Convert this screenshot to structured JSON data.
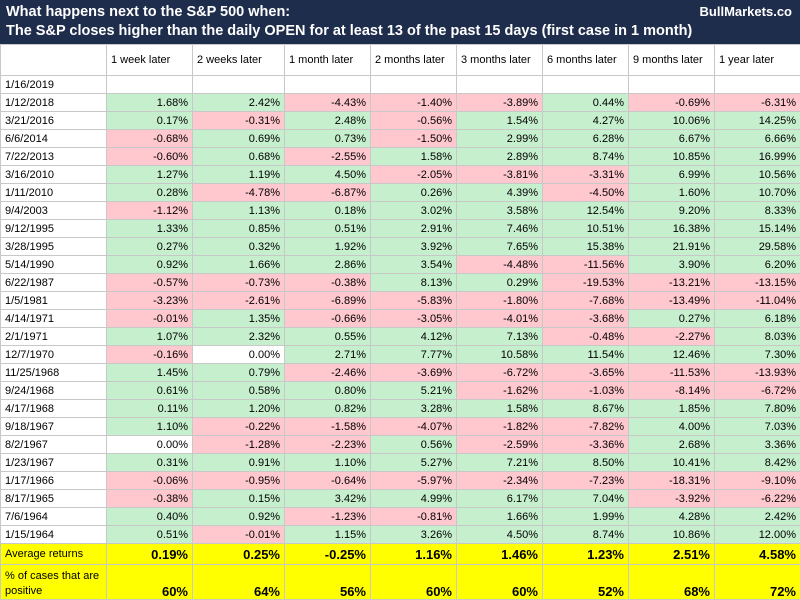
{
  "header": {
    "title_line1": "What happens next to the S&P 500 when:",
    "title_line2": "The S&P closes higher than the daily OPEN for at least 13 of the past 15 days (first case in 1 month)",
    "brand": "BullMarkets.co"
  },
  "colors": {
    "header_bg": "#1f2d4d",
    "positive_bg": "#c6efce",
    "negative_bg": "#ffc7ce",
    "summary_bg": "#ffff00"
  },
  "chart_data": {
    "type": "table",
    "columns": [
      "",
      "1 week later",
      "2 weeks later",
      "1 month later",
      "2 months later",
      "3 months later",
      "6 months later",
      "9 months later",
      "1 year later"
    ],
    "rows": [
      {
        "date": "1/16/2019",
        "values": [
          "",
          "",
          "",
          "",
          "",
          "",
          "",
          ""
        ]
      },
      {
        "date": "1/12/2018",
        "values": [
          "1.68%",
          "2.42%",
          "-4.43%",
          "-1.40%",
          "-3.89%",
          "0.44%",
          "-0.69%",
          "-6.31%"
        ]
      },
      {
        "date": "3/21/2016",
        "values": [
          "0.17%",
          "-0.31%",
          "2.48%",
          "-0.56%",
          "1.54%",
          "4.27%",
          "10.06%",
          "14.25%"
        ]
      },
      {
        "date": "6/6/2014",
        "values": [
          "-0.68%",
          "0.69%",
          "0.73%",
          "-1.50%",
          "2.99%",
          "6.28%",
          "6.67%",
          "6.66%"
        ]
      },
      {
        "date": "7/22/2013",
        "values": [
          "-0.60%",
          "0.68%",
          "-2.55%",
          "1.58%",
          "2.89%",
          "8.74%",
          "10.85%",
          "16.99%"
        ]
      },
      {
        "date": "3/16/2010",
        "values": [
          "1.27%",
          "1.19%",
          "4.50%",
          "-2.05%",
          "-3.81%",
          "-3.31%",
          "6.99%",
          "10.56%"
        ]
      },
      {
        "date": "1/11/2010",
        "values": [
          "0.28%",
          "-4.78%",
          "-6.87%",
          "0.26%",
          "4.39%",
          "-4.50%",
          "1.60%",
          "10.70%"
        ]
      },
      {
        "date": "9/4/2003",
        "values": [
          "-1.12%",
          "1.13%",
          "0.18%",
          "3.02%",
          "3.58%",
          "12.54%",
          "9.20%",
          "8.33%"
        ]
      },
      {
        "date": "9/12/1995",
        "values": [
          "1.33%",
          "0.85%",
          "0.51%",
          "2.91%",
          "7.46%",
          "10.51%",
          "16.38%",
          "15.14%"
        ]
      },
      {
        "date": "3/28/1995",
        "values": [
          "0.27%",
          "0.32%",
          "1.92%",
          "3.92%",
          "7.65%",
          "15.38%",
          "21.91%",
          "29.58%"
        ]
      },
      {
        "date": "5/14/1990",
        "values": [
          "0.92%",
          "1.66%",
          "2.86%",
          "3.54%",
          "-4.48%",
          "-11.56%",
          "3.90%",
          "6.20%"
        ]
      },
      {
        "date": "6/22/1987",
        "values": [
          "-0.57%",
          "-0.73%",
          "-0.38%",
          "8.13%",
          "0.29%",
          "-19.53%",
          "-13.21%",
          "-13.15%"
        ]
      },
      {
        "date": "1/5/1981",
        "values": [
          "-3.23%",
          "-2.61%",
          "-6.89%",
          "-5.83%",
          "-1.80%",
          "-7.68%",
          "-13.49%",
          "-11.04%"
        ]
      },
      {
        "date": "4/14/1971",
        "values": [
          "-0.01%",
          "1.35%",
          "-0.66%",
          "-3.05%",
          "-4.01%",
          "-3.68%",
          "0.27%",
          "6.18%"
        ]
      },
      {
        "date": "2/1/1971",
        "values": [
          "1.07%",
          "2.32%",
          "0.55%",
          "4.12%",
          "7.13%",
          "-0.48%",
          "-2.27%",
          "8.03%"
        ]
      },
      {
        "date": "12/7/1970",
        "values": [
          "-0.16%",
          "0.00%",
          "2.71%",
          "7.77%",
          "10.58%",
          "11.54%",
          "12.46%",
          "7.30%"
        ]
      },
      {
        "date": "11/25/1968",
        "values": [
          "1.45%",
          "0.79%",
          "-2.46%",
          "-3.69%",
          "-6.72%",
          "-3.65%",
          "-11.53%",
          "-13.93%"
        ]
      },
      {
        "date": "9/24/1968",
        "values": [
          "0.61%",
          "0.58%",
          "0.80%",
          "5.21%",
          "-1.62%",
          "-1.03%",
          "-8.14%",
          "-6.72%"
        ]
      },
      {
        "date": "4/17/1968",
        "values": [
          "0.11%",
          "1.20%",
          "0.82%",
          "3.28%",
          "1.58%",
          "8.67%",
          "1.85%",
          "7.80%"
        ]
      },
      {
        "date": "9/18/1967",
        "values": [
          "1.10%",
          "-0.22%",
          "-1.58%",
          "-4.07%",
          "-1.82%",
          "-7.82%",
          "4.00%",
          "7.03%"
        ]
      },
      {
        "date": "8/2/1967",
        "values": [
          "0.00%",
          "-1.28%",
          "-2.23%",
          "0.56%",
          "-2.59%",
          "-3.36%",
          "2.68%",
          "3.36%"
        ]
      },
      {
        "date": "1/23/1967",
        "values": [
          "0.31%",
          "0.91%",
          "1.10%",
          "5.27%",
          "7.21%",
          "8.50%",
          "10.41%",
          "8.42%"
        ]
      },
      {
        "date": "1/17/1966",
        "values": [
          "-0.06%",
          "-0.95%",
          "-0.64%",
          "-5.97%",
          "-2.34%",
          "-7.23%",
          "-18.31%",
          "-9.10%"
        ]
      },
      {
        "date": "8/17/1965",
        "values": [
          "-0.38%",
          "0.15%",
          "3.42%",
          "4.99%",
          "6.17%",
          "7.04%",
          "-3.92%",
          "-6.22%"
        ]
      },
      {
        "date": "7/6/1964",
        "values": [
          "0.40%",
          "0.92%",
          "-1.23%",
          "-0.81%",
          "1.66%",
          "1.99%",
          "4.28%",
          "2.42%"
        ]
      },
      {
        "date": "1/15/1964",
        "values": [
          "0.51%",
          "-0.01%",
          "1.15%",
          "3.26%",
          "4.50%",
          "8.74%",
          "10.86%",
          "12.00%"
        ]
      }
    ],
    "summary": [
      {
        "label": "Average returns",
        "values": [
          "0.19%",
          "0.25%",
          "-0.25%",
          "1.16%",
          "1.46%",
          "1.23%",
          "2.51%",
          "4.58%"
        ]
      },
      {
        "label": "% of cases that are positive",
        "values": [
          "60%",
          "64%",
          "56%",
          "60%",
          "60%",
          "52%",
          "68%",
          "72%"
        ]
      }
    ]
  }
}
